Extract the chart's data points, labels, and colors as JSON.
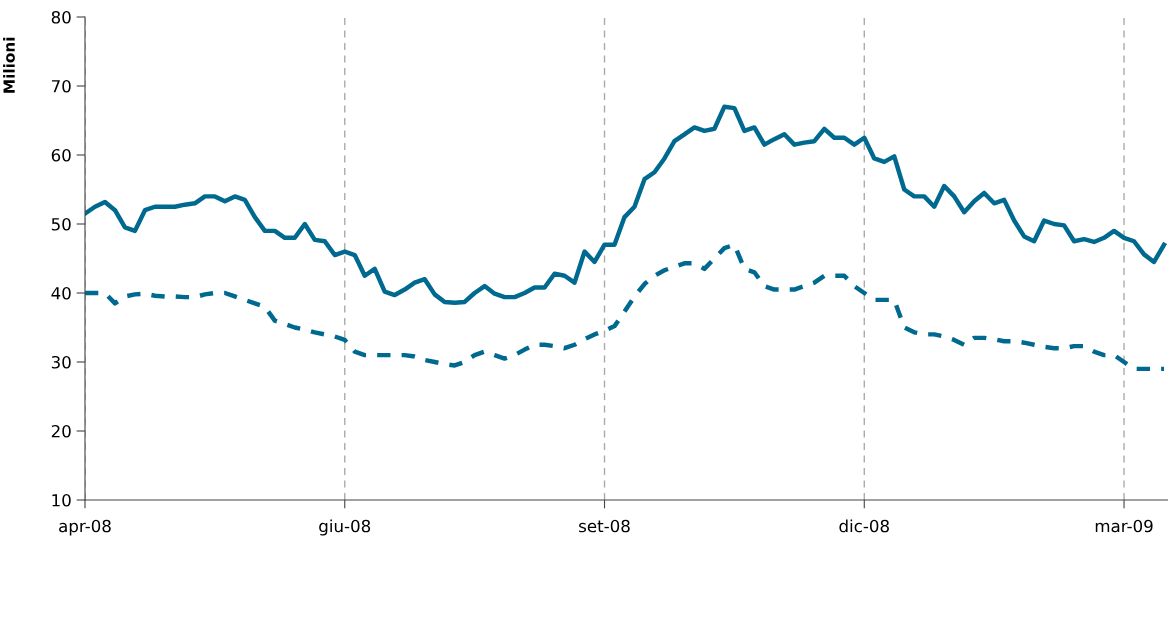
{
  "chart_data": {
    "type": "line",
    "ylabel": "Milioni",
    "categories": [
      "apr-08",
      null,
      null,
      null,
      null,
      null,
      null,
      null,
      null,
      null,
      null,
      null,
      null,
      null,
      null,
      null,
      null,
      null,
      null,
      null,
      null,
      null,
      null,
      null,
      null,
      null,
      "giu-08",
      null,
      null,
      null,
      null,
      null,
      null,
      null,
      null,
      null,
      null,
      null,
      null,
      null,
      null,
      null,
      null,
      null,
      null,
      null,
      null,
      null,
      null,
      null,
      null,
      null,
      "set-08",
      null,
      null,
      null,
      null,
      null,
      null,
      null,
      null,
      null,
      null,
      null,
      null,
      null,
      null,
      null,
      null,
      null,
      null,
      null,
      null,
      null,
      null,
      null,
      null,
      null,
      "dic-08",
      null,
      null,
      null,
      null,
      null,
      null,
      null,
      null,
      null,
      null,
      null,
      null,
      null,
      null,
      null,
      null,
      null,
      null,
      null,
      null,
      null,
      null,
      null,
      null,
      null,
      "mar-09",
      null,
      null,
      null,
      null
    ],
    "ylim": [
      10,
      80
    ],
    "yticks": [
      10,
      20,
      30,
      40,
      50,
      60,
      70,
      80
    ],
    "grid": "x",
    "series": [
      {
        "color": "#00698f",
        "line_style": "solid",
        "values": [
          51.5,
          52.5,
          53.2,
          52,
          49.5,
          49,
          52,
          52.5,
          52.5,
          52.5,
          52.8,
          53,
          54,
          54,
          53.3,
          54,
          53.5,
          51,
          49,
          49,
          48,
          48,
          50,
          47.7,
          47.5,
          45.5,
          46,
          45.5,
          42.5,
          43.5,
          40.2,
          39.7,
          40.5,
          41.5,
          42,
          39.8,
          38.7,
          38.6,
          38.7,
          40,
          41,
          39.9,
          39.4,
          39.4,
          40,
          40.8,
          40.8,
          42.8,
          42.5,
          41.5,
          46,
          44.5,
          47,
          47,
          51,
          52.5,
          56.5,
          57.5,
          59.5,
          62,
          63,
          64,
          63.5,
          63.8,
          67,
          66.8,
          63.5,
          64,
          61.5,
          62.3,
          63,
          61.5,
          61.8,
          62,
          63.8,
          62.5,
          62.5,
          61.5,
          62.5,
          59.5,
          59,
          59.8,
          55,
          54,
          54,
          52.5,
          55.5,
          54,
          51.7,
          53.3,
          54.5,
          53,
          53.5,
          50.5,
          48.2,
          47.5,
          50.5,
          50,
          49.8,
          47.5,
          47.8,
          47.4,
          48,
          49,
          48,
          47.5,
          45.6,
          44.5,
          47
        ]
      },
      {
        "color": "#00698f",
        "line_style": "dashed",
        "values": [
          40,
          40,
          40,
          38.5,
          39.5,
          39.8,
          39.9,
          39.6,
          39.5,
          39.5,
          39.4,
          39.4,
          39.8,
          40,
          40,
          39.5,
          39,
          38.5,
          38,
          36,
          35.5,
          35,
          34.7,
          34.3,
          34,
          33.7,
          33.2,
          31.5,
          31,
          31,
          31,
          31,
          31,
          30.8,
          30.3,
          30,
          29.7,
          29.5,
          30,
          31,
          31.5,
          31,
          30.5,
          31,
          31.8,
          32.5,
          32.5,
          32.3,
          32,
          32.5,
          33.3,
          34,
          34.5,
          35.2,
          37.3,
          39.5,
          41.3,
          42.5,
          43.3,
          43.8,
          44.3,
          44.3,
          43.5,
          45,
          46.5,
          47,
          43.5,
          43,
          41,
          40.5,
          40.5,
          40.5,
          41,
          41.5,
          42.5,
          42.5,
          42.5,
          41,
          40,
          39,
          39,
          39,
          35,
          34.3,
          34,
          34,
          33.7,
          33.2,
          32.5,
          33.5,
          33.5,
          33.3,
          33,
          33,
          32.8,
          32.5,
          32.2,
          32,
          32,
          32.3,
          32.3,
          31.5,
          31,
          31,
          30,
          29,
          29,
          29,
          29
        ]
      }
    ]
  }
}
